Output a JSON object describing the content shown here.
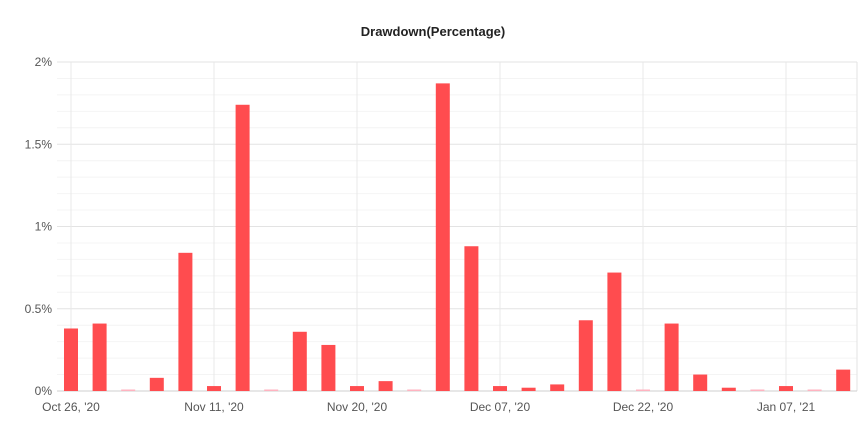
{
  "chart_data": {
    "type": "bar",
    "title": "Drawdown(Percentage)",
    "xlabel": "",
    "ylabel": "",
    "ylim": [
      0,
      2
    ],
    "yticks": [
      {
        "value": 0,
        "label": "0%"
      },
      {
        "value": 0.5,
        "label": "0.5%"
      },
      {
        "value": 1,
        "label": "1%"
      },
      {
        "value": 1.5,
        "label": "1.5%"
      },
      {
        "value": 2,
        "label": "2%"
      }
    ],
    "xtick_labels": [
      "Oct 26, '20",
      "Nov 11, '20",
      "Nov 20, '20",
      "Dec 07, '20",
      "Dec 22, '20",
      "Jan 07, '21"
    ],
    "xtick_positions": [
      0,
      5,
      10,
      15,
      20,
      25
    ],
    "values": [
      0.38,
      0.41,
      0.005,
      0.08,
      0.84,
      0.03,
      1.74,
      0.005,
      0.36,
      0.28,
      0.03,
      0.06,
      0.005,
      1.87,
      0.88,
      0.03,
      0.02,
      0.04,
      0.43,
      0.72,
      0.005,
      0.41,
      0.1,
      0.02,
      0.005,
      0.03,
      0.005,
      0.13
    ],
    "grid": true,
    "bar_color": "#ff4c4f",
    "minor_bar_color": "#ffb3c0"
  }
}
